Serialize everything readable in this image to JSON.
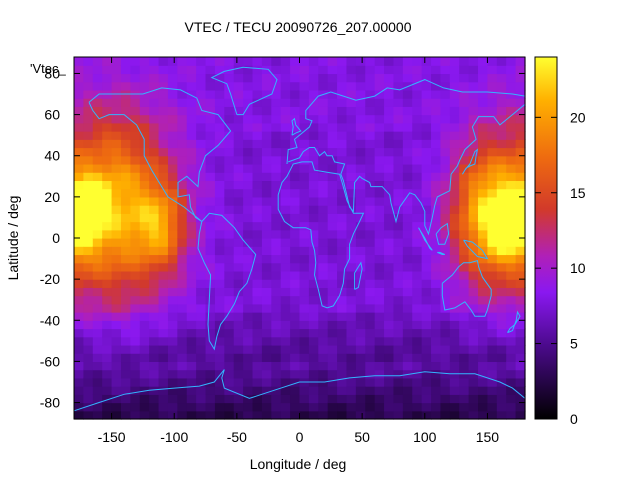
{
  "chart_data": {
    "type": "heatmap",
    "title": "VTEC / TECU 20090726_207.00000",
    "xlabel": "Longitude / deg",
    "ylabel": "Latitude / deg",
    "series_label": "'Vtec_",
    "xlim": [
      -180,
      180
    ],
    "ylim": [
      -88,
      88
    ],
    "x_ticks": [
      -150,
      -100,
      -50,
      0,
      50,
      100,
      150
    ],
    "y_ticks": [
      -80,
      -60,
      -40,
      -20,
      0,
      20,
      40,
      60,
      80
    ],
    "colorbar": {
      "range": [
        0,
        24
      ],
      "ticks": [
        0,
        5,
        10,
        15,
        20
      ]
    },
    "regions": [
      {
        "lon": -148,
        "lat": 15,
        "dlon": 60,
        "dlat": 55,
        "value": 14
      },
      {
        "lon": -175,
        "lat": 10,
        "dlon": 22,
        "dlat": 22,
        "value": 8
      },
      {
        "lon": -110,
        "lat": 5,
        "dlon": 24,
        "dlat": 25,
        "value": 7
      },
      {
        "lon": -165,
        "lat": 20,
        "dlon": 14,
        "dlat": 10,
        "value": 5
      },
      {
        "lon": 150,
        "lat": 12,
        "dlon": 38,
        "dlat": 42,
        "value": 13
      },
      {
        "lon": 165,
        "lat": 5,
        "dlon": 20,
        "dlat": 20,
        "value": 5
      }
    ],
    "base_values": {
      "north_high": 8,
      "mid": 7,
      "south_low": 2.5,
      "background": 7.5
    }
  }
}
